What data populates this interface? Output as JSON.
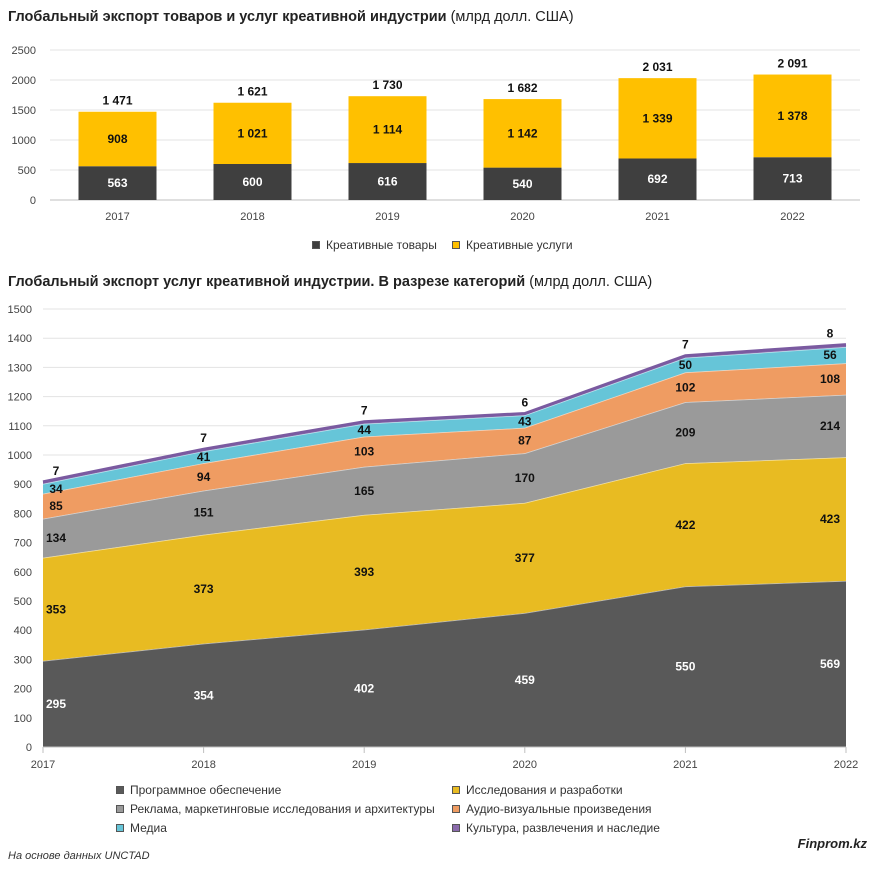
{
  "chart_data": [
    {
      "type": "bar",
      "title": "Глобальный экспорт товаров и услуг креативной индустрии",
      "unit": "(млрд долл. США)",
      "categories": [
        "2017",
        "2018",
        "2019",
        "2020",
        "2021",
        "2022"
      ],
      "series": [
        {
          "name": "Креативные товары",
          "color": "#3f3f3f",
          "values": [
            563,
            600,
            616,
            540,
            692,
            713
          ],
          "labels": [
            "563",
            "600",
            "616",
            "540",
            "692",
            "713"
          ]
        },
        {
          "name": "Креативные услуги",
          "color": "#ffc000",
          "values": [
            908,
            1021,
            1114,
            1142,
            1339,
            1378
          ],
          "labels": [
            "908",
            "1 021",
            "1 114",
            "1 142",
            "1 339",
            "1 378"
          ]
        }
      ],
      "totals": [
        "1 471",
        "1 621",
        "1 730",
        "1 682",
        "2 031",
        "2 091"
      ],
      "y_ticks": [
        "0",
        "500",
        "1000",
        "1500",
        "2000",
        "2500"
      ],
      "ylim": [
        0,
        2500
      ],
      "stacked": true,
      "legend": "bottom"
    },
    {
      "type": "area",
      "title": "Глобальный экспорт услуг креативной индустрии. В разрезе категорий",
      "unit": "(млрд долл. США)",
      "x": [
        "2017",
        "2018",
        "2019",
        "2020",
        "2021",
        "2022"
      ],
      "series": [
        {
          "name": "Программное обеспечение",
          "color": "#595959",
          "values": [
            295,
            354,
            402,
            459,
            550,
            569
          ]
        },
        {
          "name": "Исследования и разработки",
          "color": "#e8bb22",
          "values": [
            353,
            373,
            393,
            377,
            422,
            423
          ]
        },
        {
          "name": "Реклама, маркетинговые исследования и архитектуры",
          "color": "#9a9a9a",
          "values": [
            134,
            151,
            165,
            170,
            209,
            214
          ]
        },
        {
          "name": "Аудио-визуальные произведения",
          "color": "#ef9c62",
          "values": [
            85,
            94,
            103,
            87,
            102,
            108
          ]
        },
        {
          "name": "Медиа",
          "color": "#66c5d8",
          "values": [
            34,
            41,
            44,
            43,
            50,
            56
          ]
        },
        {
          "name": "Культура, развлечения и наследие",
          "color": "#8a6aac",
          "values": [
            7,
            7,
            7,
            6,
            7,
            8
          ]
        }
      ],
      "y_ticks": [
        "0",
        "100",
        "200",
        "300",
        "400",
        "500",
        "600",
        "700",
        "800",
        "900",
        "1000",
        "1100",
        "1200",
        "1300",
        "1400",
        "1500"
      ],
      "ylim": [
        0,
        1500
      ],
      "stacked": true,
      "legend": "bottom"
    }
  ],
  "footer": {
    "source": "На основе данных UNCTAD",
    "brand": "Finprom.kz"
  }
}
